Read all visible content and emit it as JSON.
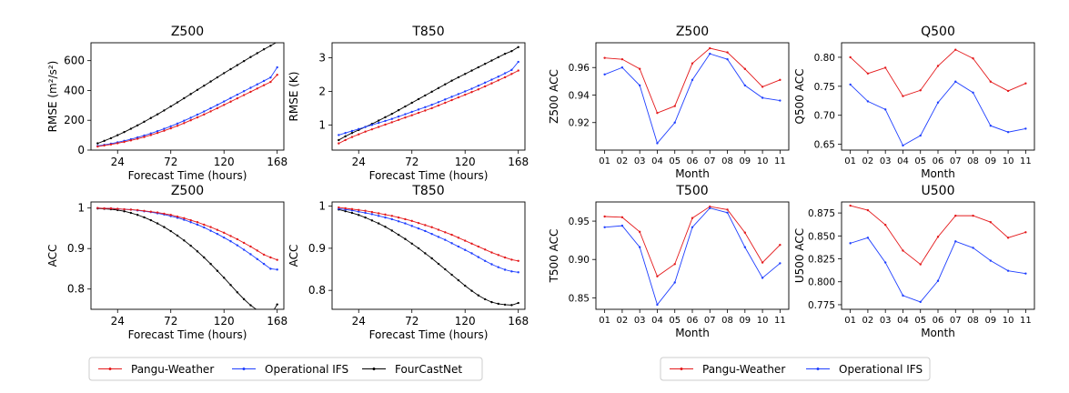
{
  "colors": {
    "pangu": "#e41a1c",
    "ifs": "#1f3fff",
    "fcn": "#000000"
  },
  "legends": [
    {
      "entries": [
        {
          "label": "Pangu-Weather",
          "color_key": "pangu"
        },
        {
          "label": "Operational IFS",
          "color_key": "ifs"
        },
        {
          "label": "FourCastNet",
          "color_key": "fcn"
        }
      ]
    },
    {
      "entries": [
        {
          "label": "Pangu-Weather",
          "color_key": "pangu"
        },
        {
          "label": "Operational IFS",
          "color_key": "ifs"
        }
      ]
    }
  ],
  "chart_data": [
    {
      "type": "line",
      "title": "Z500",
      "xlabel": "Forecast Time (hours)",
      "ylabel": "RMSE (m²/s²)",
      "x": [
        6,
        12,
        18,
        24,
        30,
        36,
        42,
        48,
        54,
        60,
        66,
        72,
        78,
        84,
        90,
        96,
        102,
        108,
        114,
        120,
        126,
        132,
        138,
        144,
        150,
        156,
        162,
        168
      ],
      "xlim": [
        0,
        174
      ],
      "ylim": [
        0,
        720
      ],
      "xticks": [
        24,
        72,
        120,
        168
      ],
      "yticks": [
        0,
        200,
        400,
        600
      ],
      "series": [
        {
          "name": "FourCastNet",
          "color_key": "fcn",
          "values": [
            45,
            62,
            80,
            100,
            121,
            143,
            166,
            190,
            215,
            240,
            266,
            293,
            320,
            348,
            376,
            404,
            432,
            460,
            488,
            516,
            543,
            570,
            597,
            624,
            650,
            676,
            700,
            725
          ]
        },
        {
          "name": "Operational IFS",
          "color_key": "ifs",
          "values": [
            28,
            35,
            43,
            52,
            62,
            73,
            85,
            98,
            112,
            127,
            143,
            160,
            178,
            197,
            217,
            238,
            259,
            281,
            303,
            326,
            349,
            372,
            395,
            418,
            441,
            464,
            487,
            555
          ]
        },
        {
          "name": "Pangu-Weather",
          "color_key": "pangu",
          "values": [
            24,
            31,
            38,
            46,
            55,
            65,
            76,
            88,
            101,
            115,
            130,
            146,
            163,
            181,
            200,
            219,
            239,
            260,
            281,
            303,
            325,
            347,
            369,
            391,
            413,
            435,
            457,
            505
          ]
        }
      ]
    },
    {
      "type": "line",
      "title": "T850",
      "xlabel": "Forecast Time (hours)",
      "ylabel": "RMSE (K)",
      "x": [
        6,
        12,
        18,
        24,
        30,
        36,
        42,
        48,
        54,
        60,
        66,
        72,
        78,
        84,
        90,
        96,
        102,
        108,
        114,
        120,
        126,
        132,
        138,
        144,
        150,
        156,
        162,
        168
      ],
      "xlim": [
        0,
        174
      ],
      "ylim": [
        0.25,
        3.45
      ],
      "xticks": [
        24,
        72,
        120,
        168
      ],
      "yticks": [
        1,
        2,
        3
      ],
      "series": [
        {
          "name": "FourCastNet",
          "color_key": "fcn",
          "values": [
            0.55,
            0.66,
            0.76,
            0.85,
            0.94,
            1.03,
            1.13,
            1.23,
            1.33,
            1.44,
            1.55,
            1.66,
            1.77,
            1.88,
            1.99,
            2.1,
            2.21,
            2.32,
            2.42,
            2.52,
            2.62,
            2.72,
            2.82,
            2.92,
            3.02,
            3.12,
            3.2,
            3.32
          ]
        },
        {
          "name": "Operational IFS",
          "color_key": "ifs",
          "values": [
            0.7,
            0.76,
            0.82,
            0.88,
            0.94,
            1.0,
            1.06,
            1.12,
            1.18,
            1.25,
            1.32,
            1.39,
            1.46,
            1.53,
            1.6,
            1.68,
            1.76,
            1.84,
            1.92,
            2.0,
            2.08,
            2.17,
            2.26,
            2.35,
            2.44,
            2.54,
            2.64,
            2.88
          ]
        },
        {
          "name": "Pangu-Weather",
          "color_key": "pangu",
          "values": [
            0.45,
            0.55,
            0.64,
            0.72,
            0.8,
            0.87,
            0.94,
            1.01,
            1.08,
            1.15,
            1.22,
            1.29,
            1.36,
            1.43,
            1.5,
            1.58,
            1.66,
            1.74,
            1.82,
            1.9,
            1.98,
            2.06,
            2.15,
            2.24,
            2.33,
            2.42,
            2.52,
            2.62
          ]
        }
      ]
    },
    {
      "type": "line",
      "title": "Z500",
      "xlabel": "Forecast Time (hours)",
      "ylabel": "ACC",
      "x": [
        6,
        12,
        18,
        24,
        30,
        36,
        42,
        48,
        54,
        60,
        66,
        72,
        78,
        84,
        90,
        96,
        102,
        108,
        114,
        120,
        126,
        132,
        138,
        144,
        150,
        156,
        162,
        168
      ],
      "xlim": [
        0,
        174
      ],
      "ylim": [
        0.75,
        1.015
      ],
      "xticks": [
        24,
        72,
        120,
        168
      ],
      "yticks": [
        0.8,
        0.9,
        1.0
      ],
      "series": [
        {
          "name": "FourCastNet",
          "color_key": "fcn",
          "values": [
            0.999,
            0.998,
            0.997,
            0.995,
            0.992,
            0.988,
            0.983,
            0.977,
            0.97,
            0.962,
            0.953,
            0.943,
            0.932,
            0.92,
            0.907,
            0.893,
            0.878,
            0.862,
            0.845,
            0.828,
            0.81,
            0.792,
            0.775,
            0.76,
            0.748,
            0.74,
            0.735,
            0.762
          ]
        },
        {
          "name": "Operational IFS",
          "color_key": "ifs",
          "values": [
            1.0,
            0.999,
            0.999,
            0.998,
            0.997,
            0.996,
            0.994,
            0.992,
            0.99,
            0.987,
            0.984,
            0.98,
            0.976,
            0.971,
            0.965,
            0.959,
            0.952,
            0.944,
            0.936,
            0.927,
            0.918,
            0.908,
            0.897,
            0.886,
            0.874,
            0.862,
            0.85,
            0.848
          ]
        },
        {
          "name": "Pangu-Weather",
          "color_key": "pangu",
          "values": [
            1.0,
            0.999,
            0.999,
            0.998,
            0.997,
            0.996,
            0.995,
            0.993,
            0.991,
            0.989,
            0.986,
            0.983,
            0.979,
            0.975,
            0.97,
            0.965,
            0.959,
            0.953,
            0.946,
            0.939,
            0.931,
            0.923,
            0.914,
            0.905,
            0.895,
            0.885,
            0.878,
            0.872
          ]
        }
      ]
    },
    {
      "type": "line",
      "title": "T850",
      "xlabel": "Forecast Time (hours)",
      "ylabel": "ACC",
      "x": [
        6,
        12,
        18,
        24,
        30,
        36,
        42,
        48,
        54,
        60,
        66,
        72,
        78,
        84,
        90,
        96,
        102,
        108,
        114,
        120,
        126,
        132,
        138,
        144,
        150,
        156,
        162,
        168
      ],
      "xlim": [
        0,
        174
      ],
      "ylim": [
        0.755,
        1.01
      ],
      "xticks": [
        24,
        72,
        120,
        168
      ],
      "yticks": [
        0.8,
        0.9,
        1.0
      ],
      "series": [
        {
          "name": "FourCastNet",
          "color_key": "fcn",
          "values": [
            0.992,
            0.988,
            0.984,
            0.979,
            0.973,
            0.966,
            0.959,
            0.951,
            0.942,
            0.932,
            0.922,
            0.911,
            0.9,
            0.888,
            0.876,
            0.863,
            0.85,
            0.837,
            0.824,
            0.811,
            0.799,
            0.788,
            0.779,
            0.772,
            0.768,
            0.766,
            0.765,
            0.77
          ]
        },
        {
          "name": "Operational IFS",
          "color_key": "ifs",
          "values": [
            0.994,
            0.992,
            0.99,
            0.987,
            0.984,
            0.981,
            0.977,
            0.973,
            0.969,
            0.964,
            0.959,
            0.953,
            0.947,
            0.941,
            0.934,
            0.927,
            0.92,
            0.912,
            0.904,
            0.896,
            0.888,
            0.879,
            0.87,
            0.862,
            0.855,
            0.849,
            0.845,
            0.843
          ]
        },
        {
          "name": "Pangu-Weather",
          "color_key": "pangu",
          "values": [
            0.997,
            0.995,
            0.993,
            0.991,
            0.989,
            0.986,
            0.983,
            0.98,
            0.977,
            0.973,
            0.969,
            0.965,
            0.96,
            0.955,
            0.95,
            0.944,
            0.938,
            0.932,
            0.925,
            0.918,
            0.911,
            0.904,
            0.897,
            0.89,
            0.884,
            0.878,
            0.873,
            0.87
          ]
        }
      ]
    },
    {
      "type": "line",
      "title": "Z500",
      "xlabel": "Month",
      "ylabel": "Z500 ACC",
      "categories": [
        "01",
        "02",
        "03",
        "04",
        "05",
        "06",
        "07",
        "08",
        "09",
        "10",
        "11"
      ],
      "ylim": [
        0.9,
        0.978
      ],
      "yticks": [
        0.92,
        0.94,
        0.96
      ],
      "tick_labels": [
        "0.92",
        "0.94",
        "0.96"
      ],
      "series": [
        {
          "name": "Pangu-Weather",
          "color_key": "pangu",
          "values": [
            0.967,
            0.966,
            0.959,
            0.927,
            0.932,
            0.963,
            0.974,
            0.971,
            0.959,
            0.946,
            0.951
          ]
        },
        {
          "name": "Operational IFS",
          "color_key": "ifs",
          "values": [
            0.955,
            0.96,
            0.947,
            0.905,
            0.92,
            0.951,
            0.97,
            0.966,
            0.947,
            0.938,
            0.936
          ]
        }
      ]
    },
    {
      "type": "line",
      "title": "Q500",
      "xlabel": "Month",
      "ylabel": "Q500 ACC",
      "categories": [
        "01",
        "02",
        "03",
        "04",
        "05",
        "06",
        "07",
        "08",
        "09",
        "10",
        "11"
      ],
      "ylim": [
        0.64,
        0.825
      ],
      "yticks": [
        0.65,
        0.7,
        0.75,
        0.8
      ],
      "tick_labels": [
        "0.65",
        "0.70",
        "0.75",
        "0.80"
      ],
      "series": [
        {
          "name": "Pangu-Weather",
          "color_key": "pangu",
          "values": [
            0.8,
            0.772,
            0.782,
            0.733,
            0.743,
            0.785,
            0.813,
            0.798,
            0.758,
            0.742,
            0.755
          ]
        },
        {
          "name": "Operational IFS",
          "color_key": "ifs",
          "values": [
            0.753,
            0.724,
            0.71,
            0.648,
            0.665,
            0.722,
            0.758,
            0.739,
            0.682,
            0.671,
            0.677
          ]
        }
      ]
    },
    {
      "type": "line",
      "title": "T500",
      "xlabel": "Month",
      "ylabel": "T500 ACC",
      "categories": [
        "01",
        "02",
        "03",
        "04",
        "05",
        "06",
        "07",
        "08",
        "09",
        "10",
        "11"
      ],
      "ylim": [
        0.835,
        0.975
      ],
      "yticks": [
        0.85,
        0.9,
        0.95
      ],
      "tick_labels": [
        "0.85",
        "0.90",
        "0.95"
      ],
      "series": [
        {
          "name": "Pangu-Weather",
          "color_key": "pangu",
          "values": [
            0.956,
            0.955,
            0.936,
            0.878,
            0.894,
            0.954,
            0.969,
            0.965,
            0.935,
            0.896,
            0.919
          ]
        },
        {
          "name": "Operational IFS",
          "color_key": "ifs",
          "values": [
            0.942,
            0.944,
            0.916,
            0.841,
            0.87,
            0.942,
            0.967,
            0.961,
            0.916,
            0.876,
            0.895
          ]
        }
      ]
    },
    {
      "type": "line",
      "title": "U500",
      "xlabel": "Month",
      "ylabel": "U500 ACC",
      "categories": [
        "01",
        "02",
        "03",
        "04",
        "05",
        "06",
        "07",
        "08",
        "09",
        "10",
        "11"
      ],
      "ylim": [
        0.77,
        0.887
      ],
      "yticks": [
        0.775,
        0.8,
        0.825,
        0.85,
        0.875
      ],
      "tick_labels": [
        "0.775",
        "0.800",
        "0.825",
        "0.850",
        "0.875"
      ],
      "series": [
        {
          "name": "Pangu-Weather",
          "color_key": "pangu",
          "values": [
            0.883,
            0.878,
            0.862,
            0.834,
            0.819,
            0.849,
            0.872,
            0.872,
            0.865,
            0.848,
            0.854
          ]
        },
        {
          "name": "Operational IFS",
          "color_key": "ifs",
          "values": [
            0.842,
            0.848,
            0.821,
            0.785,
            0.778,
            0.801,
            0.844,
            0.837,
            0.823,
            0.812,
            0.809
          ]
        }
      ]
    }
  ]
}
